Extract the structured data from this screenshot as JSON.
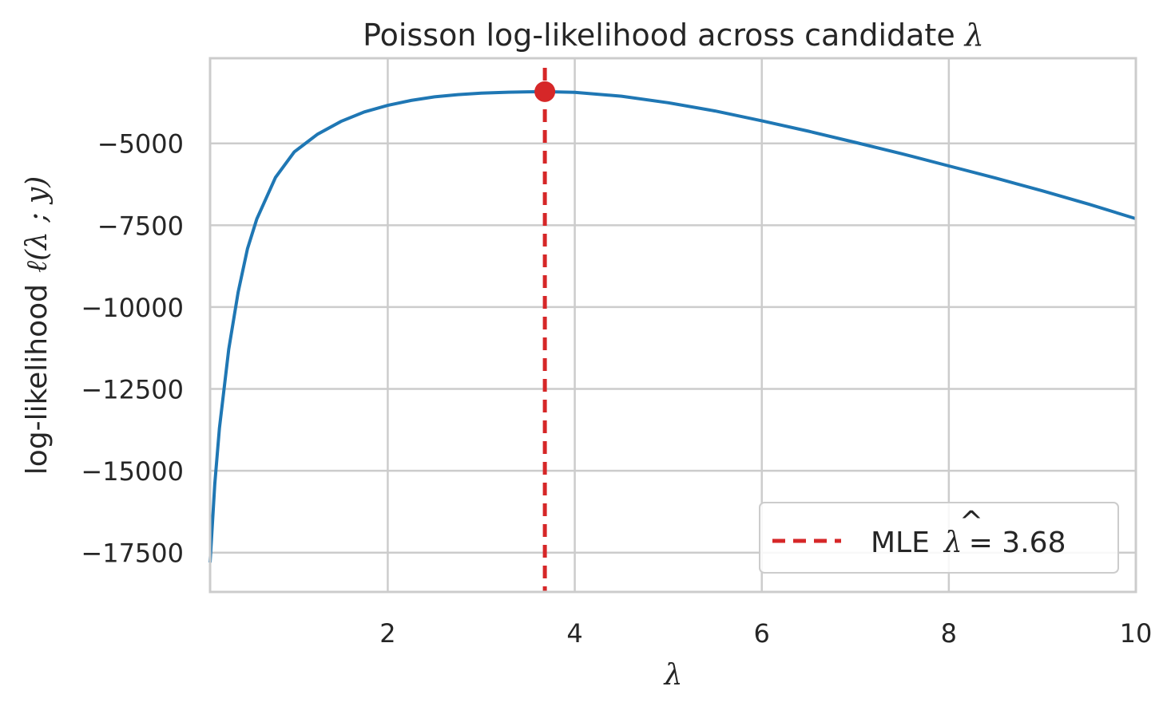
{
  "chart_data": {
    "type": "line",
    "title": "Poisson log-likelihood across candidate λ",
    "title_text": "Poisson log-likelihood across candidate ",
    "title_symbol": "λ",
    "xlabel": "λ",
    "ylabel_text": "log-likelihood",
    "ylabel_math": "ℓ(λ ; y)",
    "xlim": [
      0.1,
      10
    ],
    "ylim": [
      -18700,
      -2400
    ],
    "xticks": [
      2,
      4,
      6,
      8,
      10
    ],
    "xtick_labels": [
      "2",
      "4",
      "6",
      "8",
      "10"
    ],
    "yticks": [
      -5000,
      -7500,
      -10000,
      -12500,
      -15000,
      -17500
    ],
    "ytick_labels": [
      "−5000",
      "−7500",
      "−10000",
      "−12500",
      "−15000",
      "−17500"
    ],
    "grid": true,
    "legend_position": "lower-right",
    "series": [
      {
        "name": "",
        "color": "#1f77b4",
        "x": [
          0.1,
          0.15,
          0.2,
          0.3,
          0.4,
          0.5,
          0.6,
          0.8,
          1.0,
          1.25,
          1.5,
          1.75,
          2.0,
          2.25,
          2.5,
          2.75,
          3.0,
          3.25,
          3.5,
          3.68,
          4.0,
          4.5,
          5.0,
          5.5,
          6.0,
          6.5,
          7.0,
          7.5,
          8.0,
          8.5,
          9.0,
          9.5,
          10.0
        ],
        "y": [
          -17800,
          -15400,
          -13700,
          -11280,
          -9550,
          -8220,
          -7310,
          -6040,
          -5260,
          -4720,
          -4330,
          -4040,
          -3840,
          -3690,
          -3580,
          -3510,
          -3465,
          -3440,
          -3425,
          -3420,
          -3440,
          -3560,
          -3760,
          -4010,
          -4310,
          -4630,
          -4970,
          -5320,
          -5690,
          -6060,
          -6450,
          -6860,
          -7300
        ]
      }
    ],
    "mle": {
      "x": 3.68,
      "y": -3420,
      "color": "#d62728",
      "legend_prefix": "MLE",
      "legend_value": "= 3.68"
    }
  }
}
